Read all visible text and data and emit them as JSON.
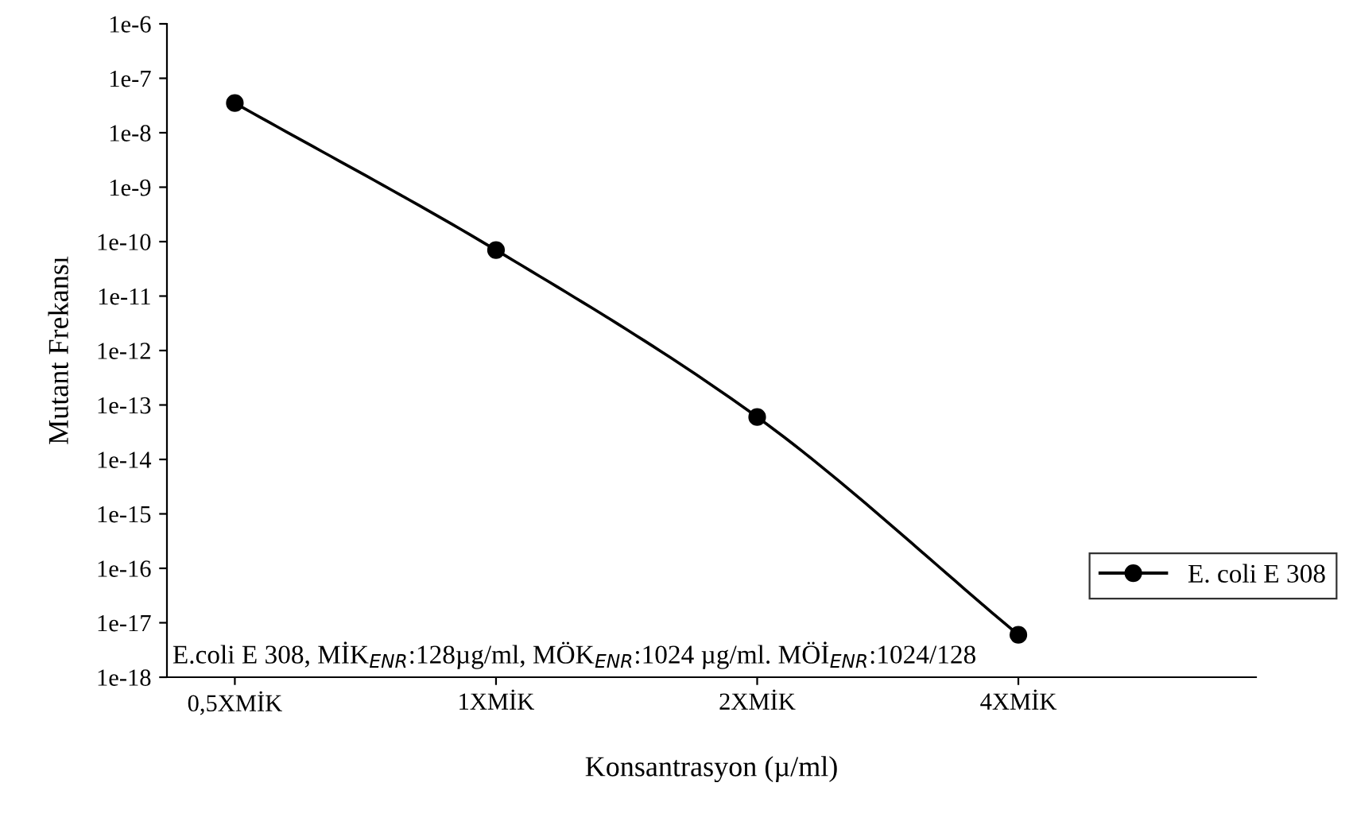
{
  "chart_data": {
    "type": "line",
    "xlabel": "Konsantrasyon (µ/ml)",
    "ylabel": "Mutant Frekansı",
    "categories": [
      "0,5XMİK",
      "1XMİK",
      "2XMİK",
      "4XMİK"
    ],
    "series": [
      {
        "name": "E. coli E 308",
        "color": "#000000",
        "values": [
          3.5e-08,
          7e-11,
          6e-14,
          6e-18
        ]
      }
    ],
    "log": "y",
    "ylim": [
      1e-18,
      1e-06
    ],
    "yticks": [
      {
        "value": 1e-18,
        "label": "1e-18"
      },
      {
        "value": 1e-17,
        "label": "1e-17"
      },
      {
        "value": 1e-16,
        "label": "1e-16"
      },
      {
        "value": 1e-15,
        "label": "1e-15"
      },
      {
        "value": 1e-14,
        "label": "1e-14"
      },
      {
        "value": 1e-13,
        "label": "1e-13"
      },
      {
        "value": 1e-12,
        "label": "1e-12"
      },
      {
        "value": 1e-11,
        "label": "1e-11"
      },
      {
        "value": 1e-10,
        "label": "1e-10"
      },
      {
        "value": 1e-09,
        "label": "1e-9"
      },
      {
        "value": 1e-08,
        "label": "1e-8"
      },
      {
        "value": 1e-07,
        "label": "1e-7"
      },
      {
        "value": 1e-06,
        "label": "1e-6"
      }
    ],
    "marker": "circle",
    "line_style": "solid",
    "grid": false,
    "legend": "right",
    "annotations": [
      "E.coli E 308, MİK$_{ENR}$:128µg/ml, MÖK$_{ENR}$:1024 µg/ml. MÖİ$_{ENR}$:1024/128"
    ]
  }
}
